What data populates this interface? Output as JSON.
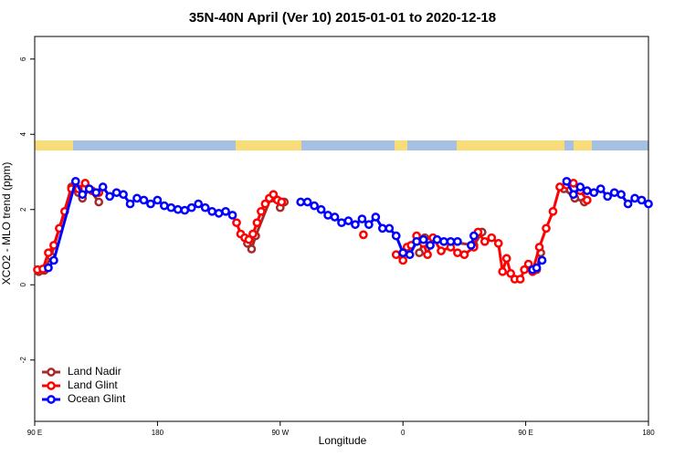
{
  "chart_data": {
    "type": "line",
    "title": "35N-40N April (Ver 10)   2015-01-01 to 2020-12-18",
    "x_label": "Longitude",
    "y_label": "XCO2 - MLO trend (ppm)",
    "xlim": [
      90,
      540
    ],
    "ylim": [
      -3.63,
      6.6
    ],
    "xticks": [
      {
        "value": 90,
        "label": "90 E"
      },
      180,
      {
        "value": 270,
        "label": "90 W"
      },
      {
        "value": 360,
        "label": "0"
      },
      {
        "value": 450,
        "label": "90 E"
      },
      {
        "value": 540,
        "label": "180"
      }
    ],
    "yticks": [
      -2,
      0,
      2,
      4,
      6
    ],
    "legend": "bottom-left",
    "series": [
      {
        "name": "Land Nadir",
        "color": "#a52a2a",
        "x": [
          93,
          97,
          102,
          117,
          122,
          125,
          130,
          137,
          null,
          246,
          249,
          252,
          263,
          266,
          270,
          273,
          null,
          372,
          376,
          412,
          418,
          null,
          458,
          461,
          null,
          478,
          486,
          493
        ],
        "values": [
          0.35,
          0.38,
          0.75,
          2.6,
          2.45,
          2.3,
          2.55,
          2.2,
          null,
          1.1,
          0.95,
          1.3,
          2.3,
          2.3,
          2.05,
          2.2,
          null,
          0.85,
          1.25,
          1.05,
          1.4,
          null,
          0.4,
          0.85,
          null,
          2.55,
          2.3,
          2.2
        ]
      },
      {
        "name": "Land Glint",
        "color": "#ff0000",
        "x": [
          92,
          96,
          100,
          104,
          108,
          112,
          117,
          122,
          127,
          132,
          137,
          null,
          238,
          241,
          244,
          247,
          250,
          253,
          256,
          259,
          262,
          265,
          268,
          271,
          null,
          331,
          null,
          355,
          360,
          363,
          366,
          370,
          375,
          378,
          382,
          388,
          395,
          400,
          405,
          412,
          415,
          420,
          425,
          430,
          433,
          436,
          439,
          442,
          446,
          449,
          452,
          455,
          460,
          465,
          470,
          475,
          480,
          485,
          490,
          495
        ],
        "values": [
          0.4,
          0.42,
          0.85,
          1.05,
          1.5,
          1.95,
          2.55,
          2.55,
          2.7,
          2.5,
          2.45,
          null,
          1.65,
          1.35,
          1.25,
          1.2,
          1.35,
          1.65,
          1.95,
          2.15,
          2.3,
          2.4,
          2.25,
          2.2,
          null,
          1.33,
          null,
          0.8,
          0.65,
          1.0,
          1.05,
          1.3,
          1.1,
          0.8,
          1.25,
          0.9,
          1.0,
          0.85,
          0.8,
          1.0,
          1.4,
          1.15,
          1.25,
          1.1,
          0.35,
          0.7,
          0.3,
          0.15,
          0.15,
          0.4,
          0.55,
          0.35,
          1.0,
          1.5,
          1.95,
          2.6,
          2.65,
          2.7,
          2.5,
          2.25
        ]
      },
      {
        "name": "Ocean Glint",
        "color": "#0000ff",
        "x": [
          100,
          104,
          120,
          125,
          130,
          135,
          140,
          145,
          150,
          155,
          160,
          165,
          170,
          175,
          180,
          185,
          190,
          195,
          200,
          205,
          210,
          215,
          220,
          225,
          230,
          235,
          null,
          285,
          290,
          295,
          300,
          305,
          310,
          315,
          320,
          325,
          330,
          335,
          340,
          345,
          350,
          355,
          360,
          365,
          370,
          375,
          380,
          385,
          390,
          395,
          400,
          null,
          410,
          412,
          null,
          455,
          458,
          462,
          null,
          480,
          485,
          490,
          495,
          500,
          505,
          510,
          515,
          520,
          525,
          530,
          535,
          540
        ],
        "values": [
          0.45,
          0.65,
          2.75,
          2.4,
          2.55,
          2.45,
          2.6,
          2.35,
          2.45,
          2.4,
          2.15,
          2.3,
          2.25,
          2.15,
          2.25,
          2.1,
          2.05,
          2.0,
          1.98,
          2.05,
          2.15,
          2.05,
          1.95,
          1.9,
          1.95,
          1.85,
          null,
          2.2,
          2.2,
          2.1,
          2.0,
          1.85,
          1.8,
          1.65,
          1.7,
          1.6,
          1.75,
          1.6,
          1.8,
          1.5,
          1.5,
          1.3,
          0.85,
          0.8,
          1.15,
          1.2,
          1.05,
          1.2,
          1.15,
          1.15,
          1.15,
          null,
          1.05,
          1.3,
          null,
          0.4,
          0.45,
          0.65,
          null,
          2.75,
          2.4,
          2.6,
          2.5,
          2.45,
          2.55,
          2.35,
          2.45,
          2.4,
          2.15,
          2.3,
          2.25,
          2.15
        ]
      }
    ]
  }
}
